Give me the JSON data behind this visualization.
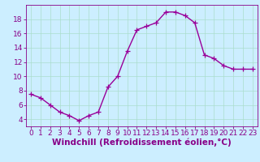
{
  "x": [
    0,
    1,
    2,
    3,
    4,
    5,
    6,
    7,
    8,
    9,
    10,
    11,
    12,
    13,
    14,
    15,
    16,
    17,
    18,
    19,
    20,
    21,
    22,
    23
  ],
  "y": [
    7.5,
    7.0,
    6.0,
    5.0,
    4.5,
    3.8,
    4.5,
    5.0,
    8.5,
    10.0,
    13.5,
    16.5,
    17.0,
    17.5,
    19.0,
    19.0,
    18.5,
    17.5,
    13.0,
    12.5,
    11.5,
    11.0,
    11.0,
    11.0
  ],
  "line_color": "#990099",
  "marker": "+",
  "marker_size": 4,
  "bg_color": "#cceeff",
  "grid_color": "#aaddcc",
  "xlabel": "Windchill (Refroidissement éolien,°C)",
  "xlim": [
    -0.5,
    23.5
  ],
  "ylim": [
    3.0,
    20.0
  ],
  "yticks": [
    4,
    6,
    8,
    10,
    12,
    14,
    16,
    18
  ],
  "xticks": [
    0,
    1,
    2,
    3,
    4,
    5,
    6,
    7,
    8,
    9,
    10,
    11,
    12,
    13,
    14,
    15,
    16,
    17,
    18,
    19,
    20,
    21,
    22,
    23
  ],
  "label_color": "#880088",
  "tick_color": "#880088",
  "spine_color": "#880088",
  "xlabel_fontsize": 7.5,
  "tick_fontsize": 6.5,
  "line_width": 1.0,
  "marker_edge_width": 0.9
}
